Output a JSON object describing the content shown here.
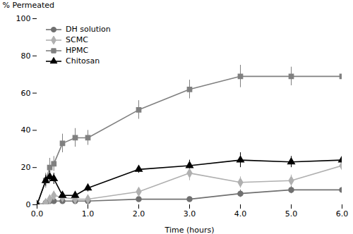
{
  "chart_data": {
    "type": "line",
    "x": [
      0,
      0.17,
      0.25,
      0.33,
      0.5,
      0.75,
      1.0,
      2.0,
      3.0,
      4.0,
      5.0,
      6.0
    ],
    "xlabel": "Time (hours)",
    "ylabel": "% Permeated",
    "xlim": [
      0,
      6
    ],
    "ylim": [
      0,
      100
    ],
    "xticks": [
      0,
      1,
      2,
      3,
      4,
      5,
      6
    ],
    "yticks": [
      0,
      20,
      40,
      60,
      80,
      100
    ],
    "legend": "upper left",
    "series": [
      {
        "name": "DH solution",
        "color": "#707070",
        "marker": "circle",
        "values": [
          0,
          1,
          2,
          2,
          2,
          2,
          2,
          3,
          3,
          6,
          8,
          8
        ],
        "yerr": [
          0,
          1,
          1,
          1,
          1,
          1,
          1,
          1,
          1,
          2,
          2,
          1
        ]
      },
      {
        "name": "SCMC",
        "color": "#b0b0b0",
        "marker": "diamond",
        "values": [
          0,
          1,
          3,
          5,
          4,
          3,
          3,
          7,
          17,
          12,
          13,
          21
        ],
        "yerr": [
          0,
          1,
          2,
          2,
          2,
          2,
          2,
          2,
          4,
          3,
          3,
          3
        ]
      },
      {
        "name": "HPMC",
        "color": "#808080",
        "marker": "square",
        "values": [
          0,
          13,
          20,
          22,
          33,
          36,
          36,
          51,
          62,
          69,
          69,
          69
        ],
        "yerr": [
          0,
          4,
          5,
          4,
          5,
          5,
          4,
          5,
          5,
          6,
          5,
          5
        ]
      },
      {
        "name": "Chitosan",
        "color": "#000000",
        "marker": "triangle",
        "values": [
          0,
          13,
          15,
          14,
          5,
          5,
          9,
          19,
          21,
          24,
          23,
          24
        ],
        "yerr": [
          0,
          3,
          3,
          3,
          2,
          2,
          2,
          2,
          3,
          4,
          3,
          3
        ]
      }
    ]
  }
}
